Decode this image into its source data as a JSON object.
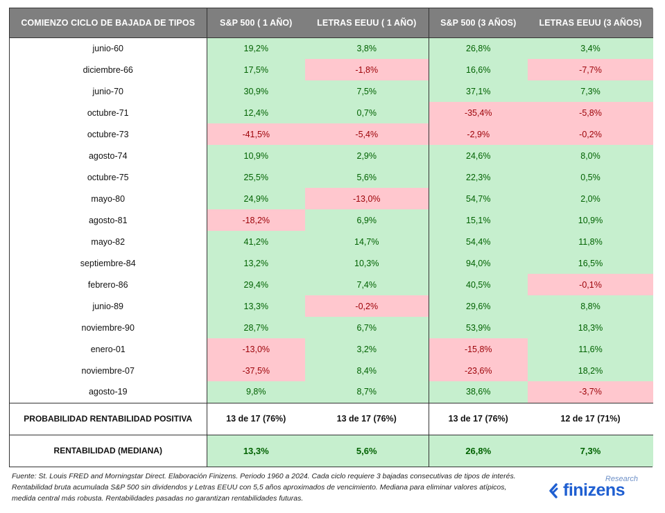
{
  "table": {
    "headers": [
      "COMIENZO CICLO DE BAJADA DE TIPOS",
      "S&P 500 ( 1 AÑO)",
      "LETRAS EEUU ( 1 AÑO)",
      "S&P 500 (3 AÑOS)",
      "LETRAS EEUU (3 AÑOS)"
    ],
    "rows": [
      {
        "period": "junio-60",
        "sp1": "19,2%",
        "lt1": "3,8%",
        "sp3": "26,8%",
        "lt3": "3,4%"
      },
      {
        "period": "diciembre-66",
        "sp1": "17,5%",
        "lt1": "-1,8%",
        "sp3": "16,6%",
        "lt3": "-7,7%"
      },
      {
        "period": "junio-70",
        "sp1": "30,9%",
        "lt1": "7,5%",
        "sp3": "37,1%",
        "lt3": "7,3%"
      },
      {
        "period": "octubre-71",
        "sp1": "12,4%",
        "lt1": "0,7%",
        "sp3": "-35,4%",
        "lt3": "-5,8%"
      },
      {
        "period": "octubre-73",
        "sp1": "-41,5%",
        "lt1": "-5,4%",
        "sp3": "-2,9%",
        "lt3": "-0,2%"
      },
      {
        "period": "agosto-74",
        "sp1": "10,9%",
        "lt1": "2,9%",
        "sp3": "24,6%",
        "lt3": "8,0%"
      },
      {
        "period": "octubre-75",
        "sp1": "25,5%",
        "lt1": "5,6%",
        "sp3": "22,3%",
        "lt3": "0,5%"
      },
      {
        "period": "mayo-80",
        "sp1": "24,9%",
        "lt1": "-13,0%",
        "sp3": "54,7%",
        "lt3": "2,0%"
      },
      {
        "period": "agosto-81",
        "sp1": "-18,2%",
        "lt1": "6,9%",
        "sp3": "15,1%",
        "lt3": "10,9%"
      },
      {
        "period": "mayo-82",
        "sp1": "41,2%",
        "lt1": "14,7%",
        "sp3": "54,4%",
        "lt3": "11,8%"
      },
      {
        "period": "septiembre-84",
        "sp1": "13,2%",
        "lt1": "10,3%",
        "sp3": "94,0%",
        "lt3": "16,5%"
      },
      {
        "period": "febrero-86",
        "sp1": "29,4%",
        "lt1": "7,4%",
        "sp3": "40,5%",
        "lt3": "-0,1%"
      },
      {
        "period": "junio-89",
        "sp1": "13,3%",
        "lt1": "-0,2%",
        "sp3": "29,6%",
        "lt3": "8,8%"
      },
      {
        "period": "noviembre-90",
        "sp1": "28,7%",
        "lt1": "6,7%",
        "sp3": "53,9%",
        "lt3": "18,3%"
      },
      {
        "period": "enero-01",
        "sp1": "-13,0%",
        "lt1": "3,2%",
        "sp3": "-15,8%",
        "lt3": "11,6%"
      },
      {
        "period": "noviembre-07",
        "sp1": "-37,5%",
        "lt1": "8,4%",
        "sp3": "-23,6%",
        "lt3": "18,2%"
      },
      {
        "period": "agosto-19",
        "sp1": "9,8%",
        "lt1": "8,7%",
        "sp3": "38,6%",
        "lt3": "-3,7%"
      }
    ],
    "summary": {
      "probability": {
        "label": "PROBABILIDAD RENTABILIDAD POSITIVA",
        "sp1": "13 de 17 (76%)",
        "lt1": "13 de 17 (76%)",
        "sp3": "13 de 17 (76%)",
        "lt3": "12 de 17 (71%)"
      },
      "median": {
        "label": "RENTABILIDAD (MEDIANA)",
        "sp1": "13,3%",
        "lt1": "5,6%",
        "sp3": "26,8%",
        "lt3": "7,3%"
      }
    }
  },
  "colors": {
    "header_bg": "#7f7f7f",
    "positive_bg": "#c6efce",
    "positive_text": "#006100",
    "negative_bg": "#ffc7ce",
    "negative_text": "#9c0006",
    "logo_blue": "#1f5fd1"
  },
  "footnote": "Fuente: St. Louis FRED and Morningstar Direct. Elaboración Finizens. Periodo 1960 a 2024. Cada ciclo requiere 3 bajadas consecutivas de tipos de interés. Rentabilidad bruta acumulada S&P 500 sin dividendos y Letras EEUU con 5,5 años aproximados de vencimiento. Mediana para eliminar valores atípicos, medida central más robusta. Rentabilidades pasadas no garantizan rentabilidades futuras.",
  "logo": {
    "word": "finizens",
    "tag": "Research",
    "icon": "finizens-logo-icon"
  }
}
